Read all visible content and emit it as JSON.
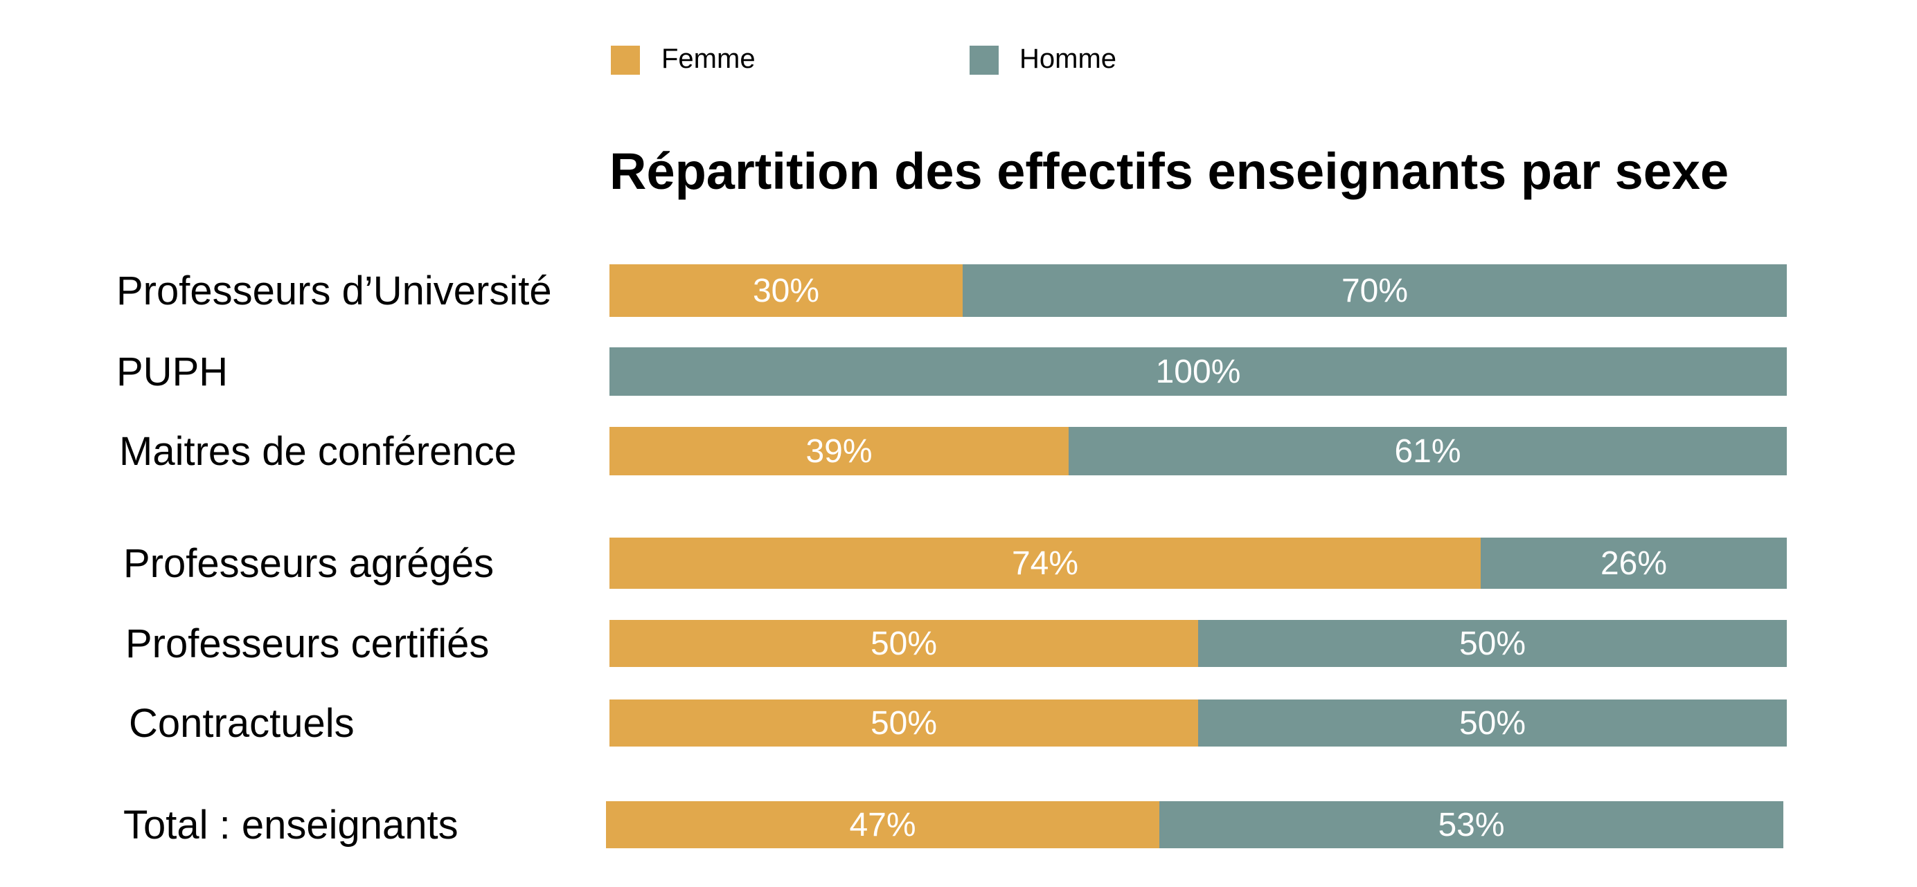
{
  "chart_data": {
    "type": "bar",
    "orientation": "horizontal",
    "stacked": true,
    "title": "Répartition des effectifs enseignants par sexe",
    "xlabel": "",
    "ylabel": "",
    "xlim": [
      0,
      100
    ],
    "grid": false,
    "legend_position": "top-left",
    "categories": [
      "Professeurs d’Université",
      "PUPH",
      "Maitres de conférence",
      "Professeurs agrégés",
      "Professeurs certifiés",
      "Contractuels",
      "Total : enseignants"
    ],
    "series": [
      {
        "name": "Femme",
        "color": "#E1A84C",
        "values": [
          30,
          0,
          39,
          74,
          50,
          50,
          47
        ],
        "labels": [
          "30%",
          "",
          "39%",
          "74%",
          "50%",
          "50%",
          "47%"
        ]
      },
      {
        "name": "Homme",
        "color": "#759694",
        "values": [
          70,
          100,
          61,
          26,
          50,
          50,
          53
        ],
        "labels": [
          "70%",
          "100%",
          "61%",
          "26%",
          "50%",
          "50%",
          "53%"
        ]
      }
    ]
  }
}
